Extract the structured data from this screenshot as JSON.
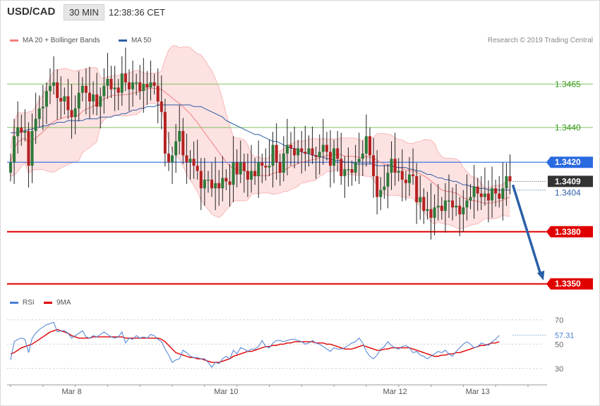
{
  "header": {
    "symbol": "USD/CAD",
    "timeframe": "30 MIN",
    "time": "12:38:36 CET"
  },
  "legend": {
    "ma20_bb": {
      "label": "MA 20 + Bollinger Bands",
      "color": "#f08080"
    },
    "ma50": {
      "label": "MA 50",
      "color": "#2e5ea8"
    },
    "rsi": {
      "label": "RSI",
      "color": "#4a7fd4"
    },
    "ma9": {
      "label": "9MA",
      "color": "#e00000"
    }
  },
  "copyright": "Research © 2019 Trading Central",
  "chart_data": [
    {
      "type": "candlestick",
      "ylim": [
        1.3343,
        1.3485
      ],
      "levels": [
        {
          "value": 1.3465,
          "label": "1.3465",
          "color": "#80c060",
          "text_color": "#3a9a1a",
          "kind": "target"
        },
        {
          "value": 1.344,
          "label": "1.3440",
          "color": "#80c060",
          "text_color": "#3a9a1a",
          "kind": "target"
        },
        {
          "value": 1.342,
          "label": "1.3420",
          "color": "#2a6ae0",
          "text_color": "#ffffff",
          "kind": "pivot"
        },
        {
          "value": 1.338,
          "label": "1.3380",
          "color": "#e00000",
          "text_color": "#ffffff",
          "kind": "support"
        },
        {
          "value": 1.335,
          "label": "1.3350",
          "color": "#e00000",
          "text_color": "#ffffff",
          "kind": "support"
        }
      ],
      "last_price": {
        "value": 1.3409,
        "label": "1.3409"
      },
      "ma50_last": {
        "value": 1.3404,
        "label": "1.3404"
      },
      "forecast": {
        "from": 1.3407,
        "to": 1.3352
      },
      "x_labels": [
        {
          "index": 17,
          "label": "Mar 8"
        },
        {
          "index": 60,
          "label": "Mar 10"
        },
        {
          "index": 107,
          "label": "Mar 12"
        },
        {
          "index": 130,
          "label": "Mar 13"
        }
      ],
      "close": [
        1.342,
        1.3435,
        1.344,
        1.3437,
        1.3438,
        1.3418,
        1.3438,
        1.3445,
        1.3451,
        1.3452,
        1.3461,
        1.3464,
        1.3466,
        1.3457,
        1.3455,
        1.3458,
        1.345,
        1.3446,
        1.3451,
        1.346,
        1.3464,
        1.346,
        1.3455,
        1.3459,
        1.3452,
        1.3458,
        1.3464,
        1.3468,
        1.3462,
        1.3463,
        1.346,
        1.3471,
        1.3466,
        1.3462,
        1.3466,
        1.3466,
        1.3461,
        1.3465,
        1.3463,
        1.3466,
        1.3464,
        1.3455,
        1.3449,
        1.3425,
        1.342,
        1.3424,
        1.3432,
        1.3438,
        1.3424,
        1.342,
        1.3422,
        1.3418,
        1.3415,
        1.3405,
        1.341,
        1.341,
        1.3405,
        1.3408,
        1.3405,
        1.3411,
        1.3409,
        1.3407,
        1.342,
        1.3413,
        1.342,
        1.3415,
        1.341,
        1.3415,
        1.3412,
        1.342,
        1.3418,
        1.3417,
        1.3418,
        1.343,
        1.342,
        1.3414,
        1.3425,
        1.343,
        1.3428,
        1.3424,
        1.3428,
        1.3426,
        1.3425,
        1.3428,
        1.3424,
        1.3423,
        1.3426,
        1.343,
        1.3426,
        1.3418,
        1.3428,
        1.3422,
        1.3412,
        1.3416,
        1.3416,
        1.3414,
        1.342,
        1.3422,
        1.3425,
        1.3435,
        1.3424,
        1.3412,
        1.34,
        1.3404,
        1.3406,
        1.3414,
        1.3422,
        1.3414,
        1.3415,
        1.341,
        1.3408,
        1.3413,
        1.3412,
        1.3397,
        1.34,
        1.3392,
        1.3393,
        1.3388,
        1.3394,
        1.3395,
        1.3392,
        1.3398,
        1.3398,
        1.3394,
        1.3395,
        1.339,
        1.3394,
        1.3398,
        1.34,
        1.3406,
        1.3402,
        1.34,
        1.3402,
        1.3398,
        1.3405,
        1.3402,
        1.3399,
        1.3405,
        1.3412,
        1.3409
      ],
      "ma50": [
        1.3437,
        1.3437,
        1.3437,
        1.3438,
        1.3438,
        1.3439,
        1.3439,
        1.344,
        1.344,
        1.3441,
        1.3441,
        1.3442,
        1.3442,
        1.3443,
        1.3443,
        1.3443,
        1.3444,
        1.3444,
        1.3444,
        1.3444,
        1.3444,
        1.3445,
        1.3445,
        1.3445,
        1.3445,
        1.3446,
        1.3446,
        1.3446,
        1.3446,
        1.3447,
        1.3447,
        1.3448,
        1.3448,
        1.3449,
        1.345,
        1.345,
        1.3451,
        1.3451,
        1.3452,
        1.3452,
        1.3452,
        1.3453,
        1.3453,
        1.3453,
        1.3453,
        1.3453,
        1.3453,
        1.3453,
        1.3453,
        1.3453,
        1.3453,
        1.3452,
        1.3452,
        1.3452,
        1.3451,
        1.345,
        1.3449,
        1.3448,
        1.3447,
        1.3446,
        1.3444,
        1.3443,
        1.3442,
        1.3441,
        1.344,
        1.3439,
        1.3438,
        1.3437,
        1.3436,
        1.3436,
        1.3435,
        1.3434,
        1.3433,
        1.3432,
        1.3432,
        1.3431,
        1.343,
        1.3429,
        1.3428,
        1.3428,
        1.3427,
        1.3426,
        1.3425,
        1.3425,
        1.3424,
        1.3424,
        1.3423,
        1.3423,
        1.3422,
        1.3422,
        1.3421,
        1.3421,
        1.3421,
        1.342,
        1.342,
        1.342,
        1.3419,
        1.3419,
        1.3419,
        1.3419,
        1.3419,
        1.3419,
        1.3418,
        1.3418,
        1.3418,
        1.3418,
        1.3418,
        1.3417,
        1.3417,
        1.3417,
        1.3417,
        1.3416,
        1.3416,
        1.3415,
        1.3415,
        1.3414,
        1.3413,
        1.3413,
        1.3412,
        1.3411,
        1.3411,
        1.341,
        1.341,
        1.3409,
        1.3409,
        1.3408,
        1.3407,
        1.3407,
        1.3406,
        1.3406,
        1.3405,
        1.3405,
        1.3405,
        1.3404,
        1.3404,
        1.3404,
        1.3404,
        1.3404,
        1.3404,
        1.3404
      ]
    },
    {
      "type": "line",
      "ylim": [
        20,
        78
      ],
      "gridlines": [
        70,
        50,
        30
      ],
      "y_labels": [
        "70",
        "50",
        "30"
      ],
      "last_rsi": {
        "value": 57.31,
        "label": "57.31"
      },
      "series": [
        {
          "name": "RSI",
          "values": [
            37,
            52,
            54,
            55,
            54,
            43,
            55,
            59,
            62,
            64,
            66,
            67,
            68,
            60,
            61,
            61,
            59,
            55,
            57,
            59,
            61,
            56,
            55,
            57,
            56,
            58,
            60,
            58,
            56,
            55,
            56,
            60,
            51,
            55,
            54,
            57,
            55,
            56,
            55,
            58,
            57,
            54,
            52,
            46,
            41,
            35,
            37,
            38,
            45,
            43,
            40,
            39,
            39,
            38,
            38,
            35,
            31,
            35,
            34,
            38,
            40,
            38,
            45,
            42,
            47,
            46,
            44,
            46,
            46,
            48,
            53,
            48,
            47,
            51,
            53,
            53,
            52,
            53,
            54,
            54,
            53,
            52,
            50,
            51,
            53,
            51,
            50,
            48,
            46,
            44,
            47,
            46,
            46,
            47,
            49,
            51,
            52,
            55,
            51,
            44,
            40,
            38,
            41,
            46,
            48,
            52,
            49,
            47,
            46,
            48,
            49,
            47,
            43,
            44,
            41,
            40,
            38,
            40,
            42,
            44,
            43,
            45,
            42,
            40,
            44,
            47,
            50,
            52,
            50,
            47,
            48,
            51,
            50,
            49,
            52,
            54,
            57.31
          ]
        },
        {
          "name": "9MA",
          "values": [
            42,
            43,
            45,
            47,
            48,
            49,
            50,
            52,
            54,
            56,
            58,
            60,
            61,
            62,
            61,
            60,
            59,
            57,
            56,
            55,
            55,
            55,
            55,
            56,
            56,
            56,
            56,
            56,
            56,
            56,
            56,
            56,
            55,
            55,
            55,
            55,
            55,
            55,
            55,
            55,
            55,
            55,
            54,
            52,
            49,
            46,
            43,
            42,
            41,
            40,
            39,
            39,
            38,
            38,
            37,
            36,
            35,
            35,
            35,
            36,
            37,
            38,
            40,
            41,
            42,
            43,
            44,
            44,
            45,
            46,
            47,
            48,
            48,
            49,
            49,
            50,
            50,
            51,
            51,
            52,
            52,
            52,
            52,
            52,
            52,
            51,
            51,
            51,
            50,
            50,
            49,
            48,
            47,
            46,
            46,
            46,
            47,
            48,
            49,
            48,
            47,
            46,
            45,
            45,
            46,
            46,
            47,
            47,
            47,
            47,
            47,
            47,
            46,
            45,
            44,
            43,
            42,
            41,
            40,
            40,
            41,
            41,
            42,
            42,
            43,
            43,
            44,
            45,
            46,
            47,
            48,
            49,
            49,
            50,
            51,
            51,
            52
          ]
        }
      ]
    }
  ]
}
